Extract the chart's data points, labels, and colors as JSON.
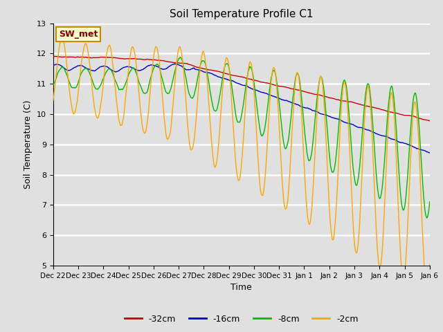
{
  "title": "Soil Temperature Profile C1",
  "xlabel": "Time",
  "ylabel": "Soil Temperature (C)",
  "ylim": [
    5.0,
    13.0
  ],
  "yticks": [
    5.0,
    6.0,
    7.0,
    8.0,
    9.0,
    10.0,
    11.0,
    12.0,
    13.0
  ],
  "x_labels": [
    "Dec 22",
    "Dec 23",
    "Dec 24",
    "Dec 25",
    "Dec 26",
    "Dec 27",
    "Dec 28",
    "Dec 29",
    "Dec 30",
    "Dec 31",
    "Jan 1",
    "Jan 2",
    "Jan 3",
    "Jan 4",
    "Jan 5",
    "Jan 6"
  ],
  "annotation_text": "SW_met",
  "annotation_bg": "#FFFFCC",
  "annotation_border": "#CC8800",
  "annotation_text_color": "#880000",
  "colors": {
    "-32cm": "#CC0000",
    "-16cm": "#0000CC",
    "-8cm": "#00BB00",
    "-2cm": "#FFA500"
  },
  "legend_labels": [
    "-32cm",
    "-16cm",
    "-8cm",
    "-2cm"
  ],
  "fig_bg": "#E0E0E0",
  "plot_bg": "#E0E0E0",
  "grid_color": "#FFFFFF"
}
